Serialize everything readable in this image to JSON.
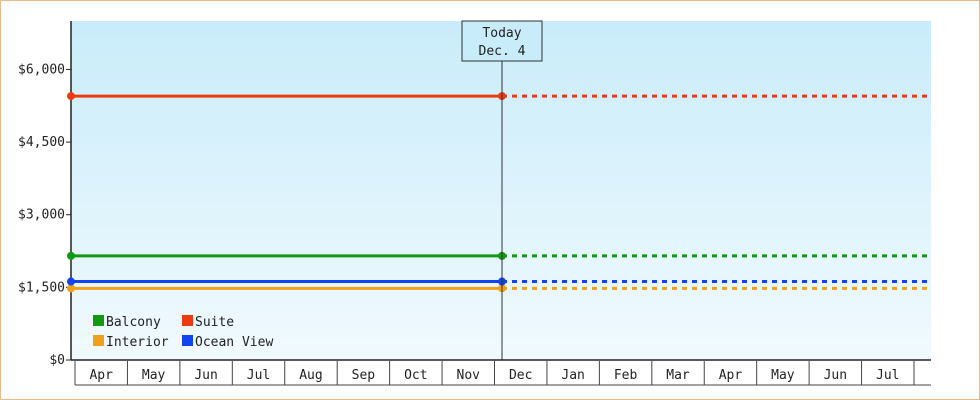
{
  "chart_data": {
    "type": "line",
    "title": "",
    "xlabel": "",
    "ylabel": "",
    "categories": [
      "Apr",
      "May",
      "Jun",
      "Jul",
      "Aug",
      "Sep",
      "Oct",
      "Nov",
      "Dec",
      "Jan",
      "Feb",
      "Mar",
      "Apr",
      "May",
      "Jun",
      "Jul"
    ],
    "ylim": [
      0,
      7000
    ],
    "y_ticks": [
      0,
      1500,
      3000,
      4500,
      6000
    ],
    "y_tick_labels": [
      "$0",
      "$1,500",
      "$3,000",
      "$4,500",
      "$6,000"
    ],
    "today_marker": {
      "line1": "Today",
      "line2": "Dec. 4"
    },
    "series": [
      {
        "name": "Balcony",
        "color": "#119911",
        "value": 2150
      },
      {
        "name": "Suite",
        "color": "#ee3a10",
        "value": 5450
      },
      {
        "name": "Interior",
        "color": "#f0a01a",
        "value": 1480
      },
      {
        "name": "Ocean View",
        "color": "#1144ee",
        "value": 1620
      }
    ],
    "plot_background": [
      "#c9ecfa",
      "#f1fafe"
    ],
    "legend_position": "bottom-left",
    "grid": false
  }
}
